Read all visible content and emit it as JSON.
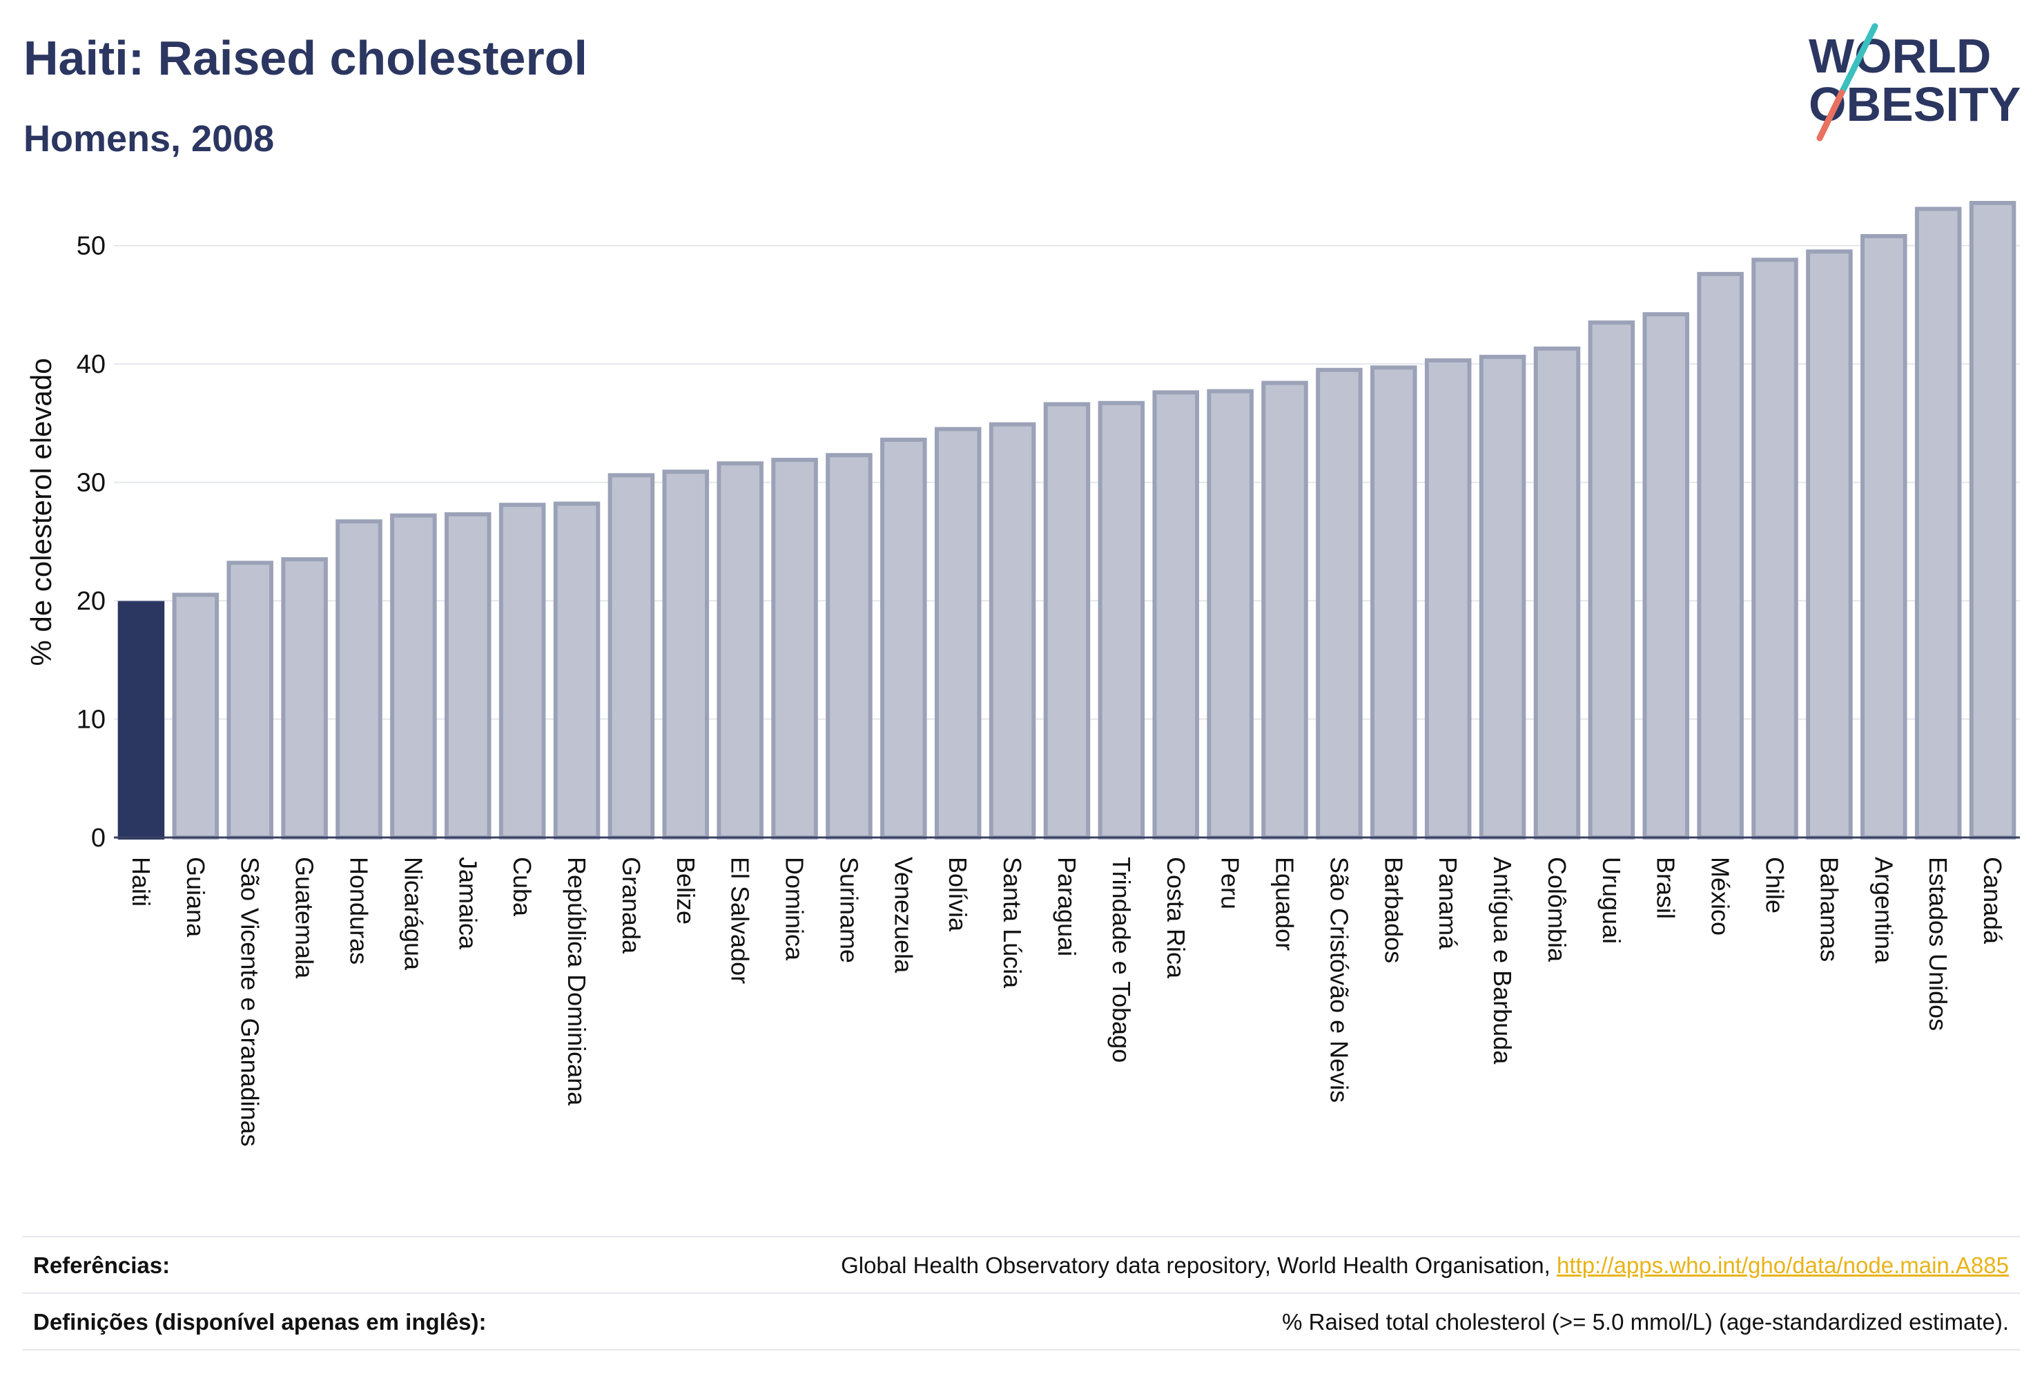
{
  "header": {
    "title": "Haiti: Raised cholesterol",
    "subtitle": "Homens, 2008"
  },
  "logo": {
    "line1": "WORLD",
    "line2": "OBESITY"
  },
  "colors": {
    "highlight": "#2b3661",
    "bar_fill": "#bfc3d1",
    "bar_stroke": "#9ba2b8",
    "logo_teal": "#3bbfbf",
    "logo_coral": "#e9715f",
    "link": "#e9b319"
  },
  "chart_data": {
    "type": "bar",
    "title": "",
    "xlabel": "",
    "ylabel": "% de colesterol elevado",
    "ylim": [
      0,
      55
    ],
    "yticks": [
      0,
      10,
      20,
      30,
      40,
      50
    ],
    "grid": true,
    "highlight": "Haiti",
    "categories": [
      "Haiti",
      "Guiana",
      "São Vicente e Granadinas",
      "Guatemala",
      "Honduras",
      "Nicarágua",
      "Jamaica",
      "Cuba",
      "República Dominicana",
      "Granada",
      "Belize",
      "El Salvador",
      "Dominica",
      "Suriname",
      "Venezuela",
      "Bolívia",
      "Santa Lúcia",
      "Paraguai",
      "Trindade e Tobago",
      "Costa Rica",
      "Peru",
      "Equador",
      "São Cristóvão e Nevis",
      "Barbados",
      "Panamá",
      "Antígua e Barbuda",
      "Colômbia",
      "Uruguai",
      "Brasil",
      "México",
      "Chile",
      "Bahamas",
      "Argentina",
      "Estados Unidos",
      "Canadá"
    ],
    "values": [
      19.8,
      20.5,
      23.2,
      23.5,
      26.7,
      27.2,
      27.3,
      28.1,
      28.2,
      30.6,
      30.9,
      31.6,
      31.9,
      32.3,
      33.6,
      34.5,
      34.9,
      36.6,
      36.7,
      37.6,
      37.7,
      38.4,
      39.5,
      39.7,
      40.3,
      40.6,
      41.3,
      43.5,
      44.2,
      47.6,
      48.8,
      49.5,
      50.8,
      53.1,
      53.6
    ]
  },
  "footer": {
    "references_label": "Referências:",
    "references_text": "Global Health Observatory data repository, World Health Organisation, ",
    "references_link": "http://apps.who.int/gho/data/node.main.A885",
    "definitions_label": "Definições (disponível apenas em inglês):",
    "definitions_text": "% Raised total cholesterol (>= 5.0 mmol/L) (age-standardized estimate)."
  }
}
